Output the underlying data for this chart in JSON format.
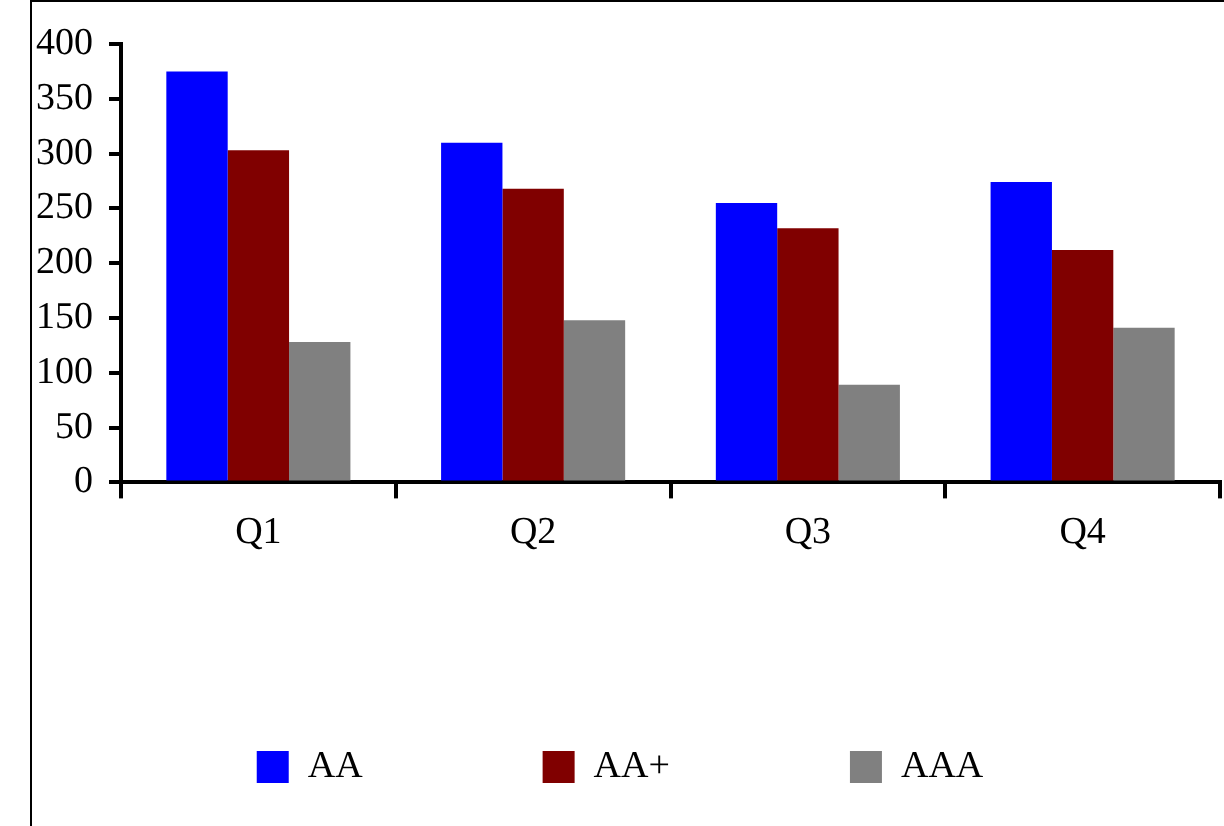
{
  "chart_data": {
    "type": "bar",
    "categories": [
      "Q1",
      "Q2",
      "Q3",
      "Q4"
    ],
    "series": [
      {
        "name": "AA",
        "color": "#0000ff",
        "values": [
          375,
          310,
          255,
          274
        ]
      },
      {
        "name": "AA+",
        "color": "#800000",
        "values": [
          303,
          268,
          232,
          212
        ]
      },
      {
        "name": "AAA",
        "color": "#808080",
        "values": [
          128,
          148,
          89,
          141
        ]
      }
    ],
    "ylim": [
      0,
      400
    ],
    "yticks": [
      0,
      50,
      100,
      150,
      200,
      250,
      300,
      350,
      400
    ],
    "grid": false,
    "legend": "bottom"
  }
}
